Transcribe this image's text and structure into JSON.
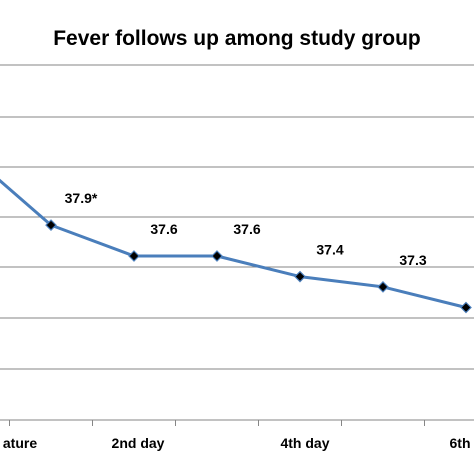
{
  "chart_data": {
    "type": "line",
    "title": "Fever follows up among study group",
    "x_tick_labels": [
      "ature",
      "2nd day",
      "4th day",
      "6th"
    ],
    "series": [
      {
        "color": "#4a7ebb",
        "points": [
          {
            "y": 38.6,
            "label": ""
          },
          {
            "y": 37.9,
            "label": "37.9*"
          },
          {
            "y": 37.6,
            "label": "37.6"
          },
          {
            "y": 37.6,
            "label": "37.6"
          },
          {
            "y": 37.4,
            "label": "37.4"
          },
          {
            "y": 37.3,
            "label": "37.3"
          },
          {
            "y": 37.1,
            "label": ""
          }
        ]
      }
    ],
    "grid": true,
    "legend": "none"
  }
}
